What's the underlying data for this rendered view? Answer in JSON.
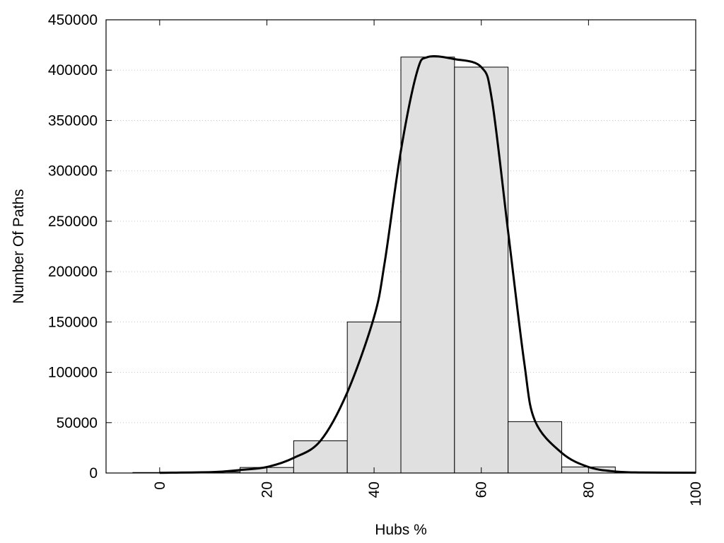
{
  "chart_data": {
    "type": "bar",
    "title": "",
    "xlabel": "Hubs %",
    "ylabel": "Number Of Paths",
    "xlim": [
      -10,
      100
    ],
    "ylim": [
      0,
      450000
    ],
    "x_ticks": [
      0,
      20,
      40,
      60,
      80,
      100
    ],
    "y_ticks": [
      0,
      50000,
      100000,
      150000,
      200000,
      250000,
      300000,
      350000,
      400000,
      450000
    ],
    "grid": "horizontal-dotted",
    "legend": "none",
    "bars": [
      {
        "x0": -5,
        "x1": 5,
        "value": 500
      },
      {
        "x0": 5,
        "x1": 15,
        "value": 1000
      },
      {
        "x0": 15,
        "x1": 25,
        "value": 5500
      },
      {
        "x0": 25,
        "x1": 35,
        "value": 32000
      },
      {
        "x0": 35,
        "x1": 45,
        "value": 150000
      },
      {
        "x0": 45,
        "x1": 55,
        "value": 413000
      },
      {
        "x0": 55,
        "x1": 65,
        "value": 403000
      },
      {
        "x0": 65,
        "x1": 75,
        "value": 51000
      },
      {
        "x0": 75,
        "x1": 85,
        "value": 6000
      },
      {
        "x0": 85,
        "x1": 95,
        "value": 500
      },
      {
        "x0": 95,
        "x1": 105,
        "value": 0
      }
    ],
    "curve": {
      "x": [
        0,
        10,
        15,
        20,
        25,
        30,
        35,
        40,
        42,
        45,
        48,
        50,
        55,
        60,
        62,
        65,
        68,
        70,
        75,
        80,
        85,
        90,
        100
      ],
      "y": [
        200,
        1000,
        3000,
        6000,
        15000,
        32000,
        80000,
        155000,
        210000,
        320000,
        398000,
        413000,
        411000,
        403000,
        370000,
        240000,
        110000,
        52000,
        20000,
        6000,
        1500,
        500,
        300
      ]
    },
    "colors": {
      "bar_fill": "#e0e0e0",
      "bar_stroke": "#000000",
      "curve": "#000000",
      "grid": "#c8c8c8"
    }
  }
}
